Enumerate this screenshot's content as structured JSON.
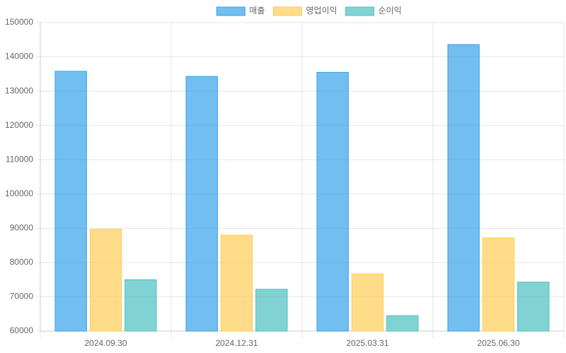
{
  "chart_data": {
    "type": "bar",
    "categories": [
      "2024.09.30",
      "2024.12.31",
      "2025.03.31",
      "2025.06.30"
    ],
    "series": [
      {
        "name": "매출",
        "color": "#36a2eb",
        "values": [
          135800,
          134300,
          135500,
          143600
        ]
      },
      {
        "name": "영업이익",
        "color": "#ffcd56",
        "values": [
          89700,
          88000,
          76700,
          87200
        ]
      },
      {
        "name": "순이익",
        "color": "#4bc0c0",
        "values": [
          75000,
          72200,
          64500,
          74300
        ]
      }
    ],
    "ylim": [
      60000,
      150000
    ],
    "yticks": [
      60000,
      70000,
      80000,
      90000,
      100000,
      110000,
      120000,
      130000,
      140000,
      150000
    ],
    "grid": true,
    "legend": "top"
  }
}
